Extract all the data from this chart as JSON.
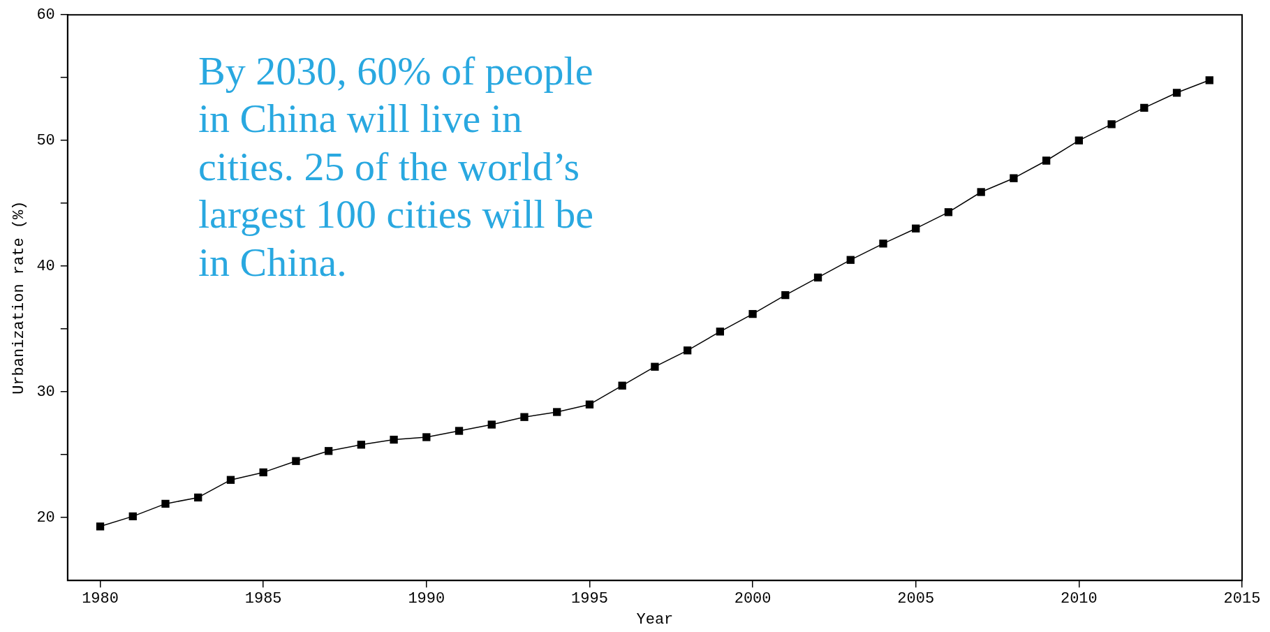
{
  "chart_data": {
    "type": "line",
    "xlabel": "Year",
    "ylabel": "Urbanization rate (%)",
    "x": [
      1980,
      1981,
      1982,
      1983,
      1984,
      1985,
      1986,
      1987,
      1988,
      1989,
      1990,
      1991,
      1992,
      1993,
      1994,
      1995,
      1996,
      1997,
      1998,
      1999,
      2000,
      2001,
      2002,
      2003,
      2004,
      2005,
      2006,
      2007,
      2008,
      2009,
      2010,
      2011,
      2012,
      2013,
      2014
    ],
    "series": [
      {
        "color": "#000000",
        "values": [
          19.3,
          20.1,
          21.1,
          21.6,
          23.0,
          23.6,
          24.5,
          25.3,
          25.8,
          26.2,
          26.4,
          26.9,
          27.4,
          28.0,
          28.4,
          29.0,
          30.5,
          32.0,
          33.3,
          34.8,
          36.2,
          37.7,
          39.1,
          40.5,
          41.8,
          43.0,
          44.3,
          45.9,
          47.0,
          48.4,
          50.0,
          51.3,
          52.6,
          53.8,
          54.8
        ]
      }
    ],
    "xlim": [
      1979,
      2015
    ],
    "xticks": [
      1980,
      1985,
      1990,
      1995,
      2000,
      2005,
      2010,
      2015
    ],
    "ylim": [
      15,
      60
    ],
    "yticks": [
      20,
      {
        "value": 25,
        "label": null
      },
      30,
      {
        "value": 35,
        "label": null
      },
      40,
      {
        "value": 45,
        "label": null
      },
      50,
      {
        "value": 55,
        "label": null
      },
      60
    ],
    "marker": "square",
    "line_style": "solid",
    "legend": false,
    "annotations": [
      "By 2030, 60% of people in China will live in cities. 25 of the world’s largest 100 cities will be in China."
    ]
  }
}
